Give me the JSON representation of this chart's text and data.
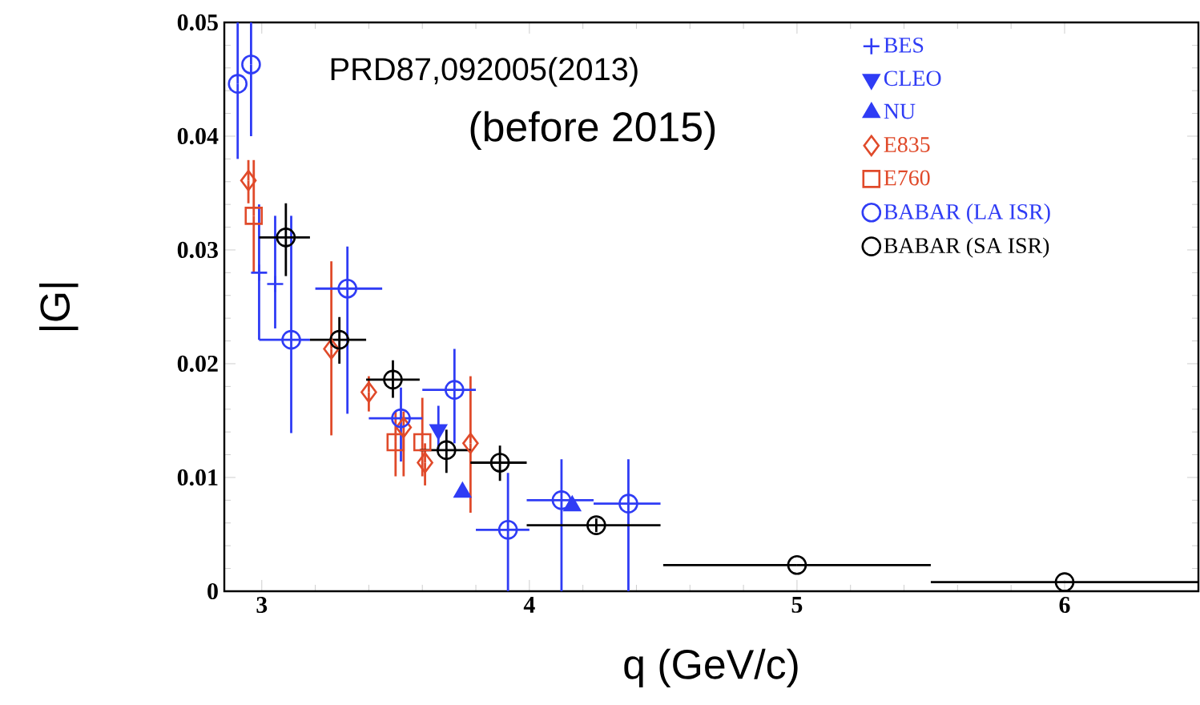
{
  "chart_data": {
    "type": "scatter",
    "xlabel": "q (GeV/c)",
    "ylabel": "|G|",
    "annotations": [
      "PRD87,092005(2013)",
      "(before 2015)"
    ],
    "xlim": [
      2.86,
      6.5
    ],
    "ylim": [
      0,
      0.05
    ],
    "xticks": [
      3,
      4,
      5,
      6
    ],
    "yticks": [
      0,
      0.01,
      0.02,
      0.03,
      0.04,
      0.05
    ],
    "legend": "top right",
    "grid": false,
    "series": [
      {
        "name": "BES",
        "color": "#2f3cf5",
        "marker": "cross",
        "x": [
          2.99,
          3.05
        ],
        "values": [
          0.028,
          0.027
        ],
        "errors": [
          [
            0.0221,
            0.034
          ],
          [
            0.0231,
            0.033
          ]
        ]
      },
      {
        "name": "CLEO",
        "color": "#2f3cf5",
        "marker": "triangle-down",
        "x": [
          3.66
        ],
        "values": [
          0.0142
        ],
        "errors": [
          [
            0.0125,
            0.0163
          ]
        ]
      },
      {
        "name": "NU",
        "color": "#2f3cf5",
        "marker": "triangle",
        "x": [
          3.75,
          4.16
        ],
        "values": [
          0.0087,
          0.0075
        ]
      },
      {
        "name": "E835",
        "color": "#e04a2a",
        "marker": "diamond",
        "x": [
          2.95,
          3.26,
          3.4,
          3.53,
          3.61,
          3.78
        ],
        "values": [
          0.0361,
          0.0213,
          0.0175,
          0.0144,
          0.0113,
          0.013
        ],
        "errors": [
          [
            0.0341,
            0.0379
          ],
          [
            0.0137,
            0.029
          ],
          [
            0.0158,
            0.0189
          ],
          [
            0.0101,
            0.0158
          ],
          [
            0.0093,
            0.013
          ],
          [
            0.0069,
            0.0189
          ]
        ]
      },
      {
        "name": "E760",
        "color": "#e04a2a",
        "marker": "square",
        "x": [
          2.97,
          3.5,
          3.6
        ],
        "values": [
          0.033,
          0.0131,
          0.0131
        ],
        "errors": [
          [
            0.028,
            0.0379
          ],
          [
            0.0101,
            0.0158
          ],
          [
            0.0101,
            0.017
          ]
        ]
      },
      {
        "name": "BABAR (LA ISR)",
        "color": "#2f3cf5",
        "marker": "circle",
        "x": [
          2.91,
          2.96,
          3.11,
          3.32,
          3.52,
          3.72,
          3.92,
          4.12,
          4.37
        ],
        "values": [
          0.0446,
          0.0463,
          0.0221,
          0.0266,
          0.0152,
          0.0177,
          0.0054,
          0.008,
          0.0077
        ],
        "errors": [
          [
            0.038,
            0.05
          ],
          [
            0.04,
            0.05
          ],
          [
            0.0139,
            0.033
          ],
          [
            0.0156,
            0.0303
          ],
          [
            0.0114,
            0.0179
          ],
          [
            0.013,
            0.0213
          ],
          [
            0,
            0.0104
          ],
          [
            0,
            0.0116
          ],
          [
            0,
            0.0116
          ]
        ],
        "xerrors": [
          null,
          null,
          [
            2.99,
            3.18
          ],
          [
            3.2,
            3.45
          ],
          [
            3.4,
            3.6
          ],
          [
            3.6,
            3.8
          ],
          [
            3.8,
            4.0
          ],
          [
            3.99,
            4.24
          ],
          [
            4.24,
            4.49
          ]
        ]
      },
      {
        "name": "BABAR (SA ISR)",
        "color": "#000000",
        "marker": "circle",
        "x": [
          3.09,
          3.29,
          3.49,
          3.69,
          3.89,
          4.25,
          5.0,
          6.0
        ],
        "values": [
          0.0311,
          0.0221,
          0.0186,
          0.0124,
          0.0113,
          0.0058,
          0.0023,
          0.0008
        ],
        "errors": [
          [
            0.0277,
            0.0341
          ],
          [
            0.02,
            0.0241
          ],
          [
            0.017,
            0.0203
          ],
          [
            0.0104,
            0.0142
          ],
          [
            0.0097,
            0.0128
          ],
          [
            0.0052,
            0.0064
          ],
          null,
          null
        ],
        "xerrors": [
          [
            2.99,
            3.18
          ],
          [
            3.18,
            3.39
          ],
          [
            3.39,
            3.59
          ],
          [
            3.59,
            3.78
          ],
          [
            3.78,
            3.99
          ],
          [
            3.99,
            4.49
          ],
          [
            4.5,
            5.5
          ],
          [
            5.5,
            6.5
          ]
        ]
      }
    ]
  }
}
